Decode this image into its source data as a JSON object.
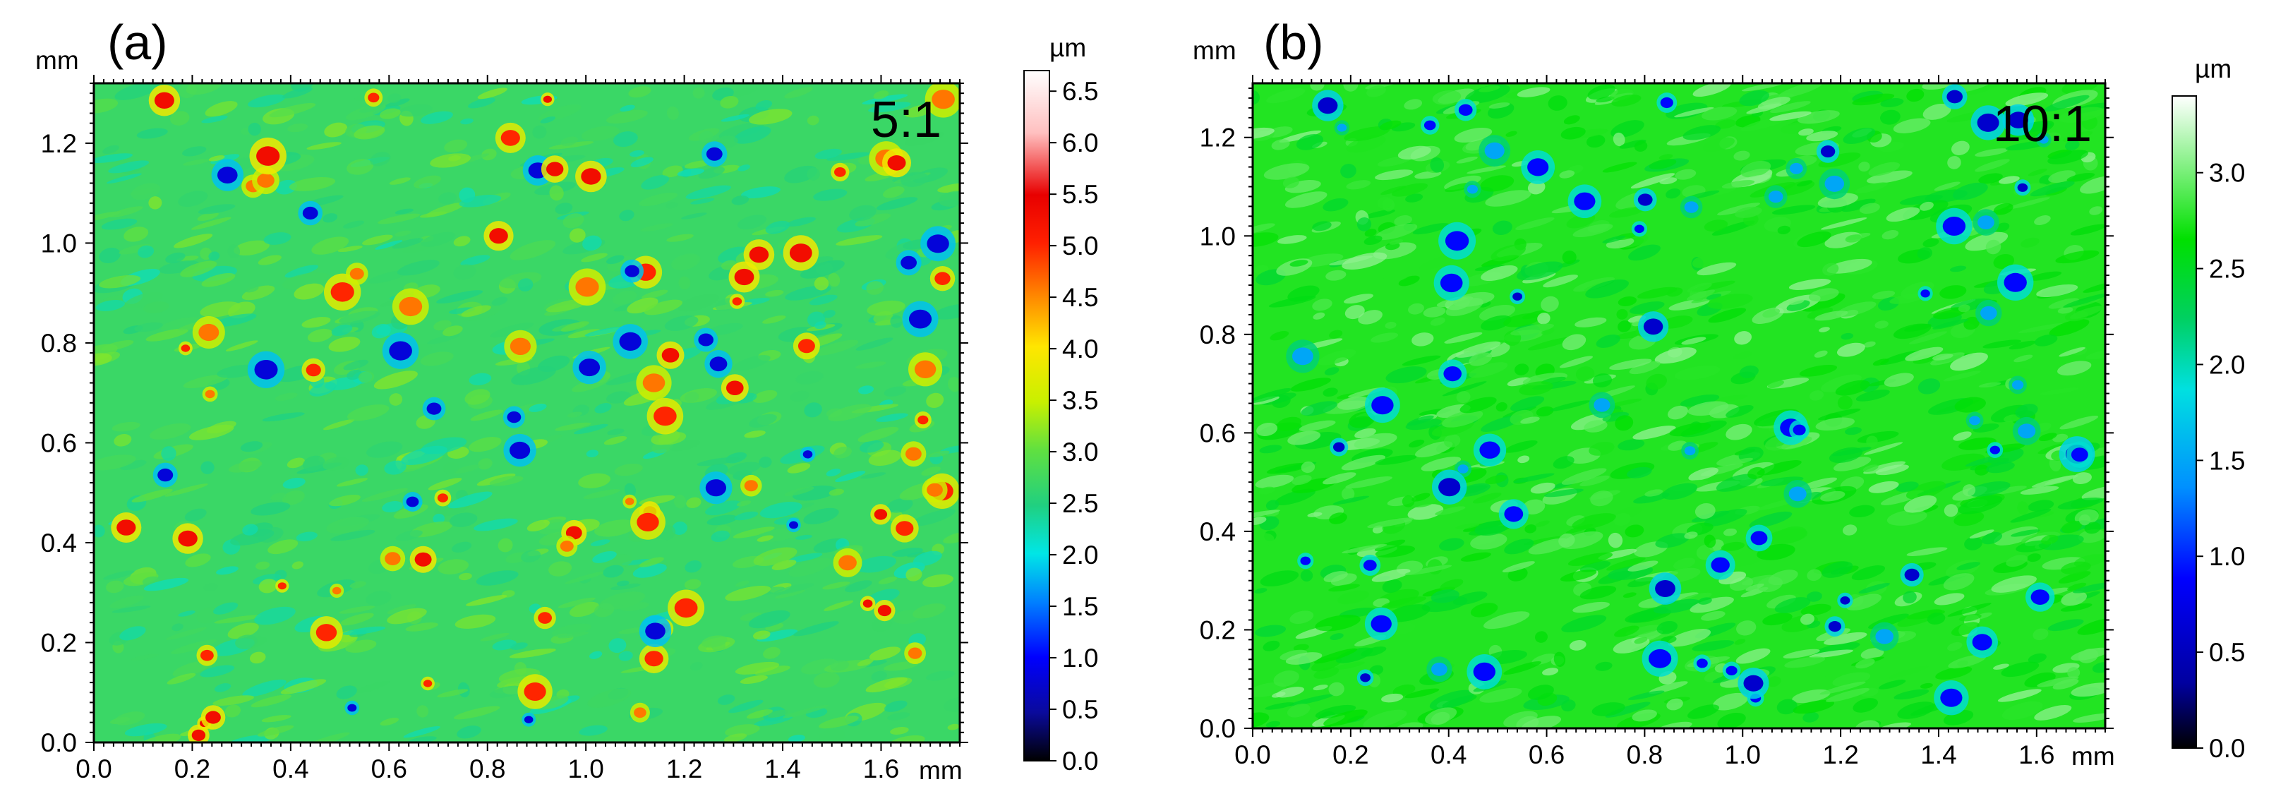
{
  "chart_data": [
    {
      "type": "heatmap",
      "panel_label": "(a)",
      "ratio_label": "5:1",
      "xlabel": "mm",
      "ylabel": "mm",
      "xlim": [
        0,
        1.76
      ],
      "ylim": [
        0,
        1.32
      ],
      "x_ticks": [
        "0.0",
        "0.2",
        "0.4",
        "0.6",
        "0.8",
        "1.0",
        "1.2",
        "1.4",
        "1.6"
      ],
      "y_ticks": [
        "0.0",
        "0.2",
        "0.4",
        "0.6",
        "0.8",
        "1.0",
        "1.2"
      ],
      "colorbar": {
        "unit": "µm",
        "range": [
          0,
          6.7
        ],
        "ticks": [
          "0.0",
          "0.5",
          "1.0",
          "1.5",
          "2.0",
          "2.5",
          "3.0",
          "3.5",
          "4.0",
          "4.5",
          "5.0",
          "5.5",
          "6.0",
          "6.5"
        ],
        "colormap": [
          "#000000",
          "#0a0a9c",
          "#0000ff",
          "#0080ff",
          "#00e6e6",
          "#20d080",
          "#60e040",
          "#c8f000",
          "#ffe600",
          "#ff8c00",
          "#ff2000",
          "#e80000",
          "#ffc0c0",
          "#ffffff"
        ],
        "colormap_stops": [
          0,
          0.07,
          0.15,
          0.23,
          0.3,
          0.37,
          0.45,
          0.52,
          0.6,
          0.67,
          0.75,
          0.82,
          0.91,
          1
        ]
      },
      "surface": {
        "base_value": 2.7,
        "variation": 0.5,
        "feature_values": [
          5.3,
          5.0,
          4.6,
          0.8
        ]
      }
    },
    {
      "type": "heatmap",
      "panel_label": "(b)",
      "ratio_label": "10:1",
      "xlabel": "mm",
      "ylabel": "mm",
      "xlim": [
        0,
        1.74
      ],
      "ylim": [
        0,
        1.31
      ],
      "x_ticks": [
        "0.0",
        "0.2",
        "0.4",
        "0.6",
        "0.8",
        "1.0",
        "1.2",
        "1.4",
        "1.6"
      ],
      "y_ticks": [
        "0.0",
        "0.2",
        "0.4",
        "0.6",
        "0.8",
        "1.0",
        "1.2"
      ],
      "colorbar": {
        "unit": "µm",
        "range": [
          0,
          3.4
        ],
        "ticks": [
          "0.0",
          "0.5",
          "1.0",
          "1.5",
          "2.0",
          "2.5",
          "3.0"
        ],
        "colormap": [
          "#000000",
          "#0000a0",
          "#0000ff",
          "#0090ff",
          "#00e0e0",
          "#00d060",
          "#00e000",
          "#80f080",
          "#ffffff"
        ],
        "colormap_stops": [
          0,
          0.1,
          0.26,
          0.4,
          0.55,
          0.66,
          0.78,
          0.89,
          1
        ]
      },
      "surface": {
        "base_value": 2.75,
        "variation": 0.35,
        "feature_values": [
          1.5,
          0.9,
          0.6
        ]
      }
    }
  ]
}
